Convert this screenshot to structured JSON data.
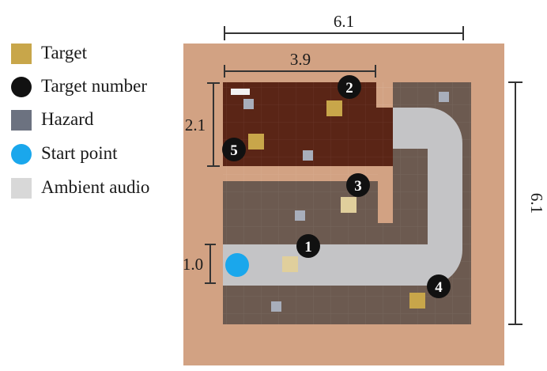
{
  "legend": [
    {
      "label": "Target",
      "icon": "target-square-icon",
      "color": "#c8a64a",
      "shape": "square"
    },
    {
      "label": "Target number",
      "icon": "target-number-dot-icon",
      "color": "#111111",
      "shape": "circle"
    },
    {
      "label": "Hazard",
      "icon": "hazard-square-icon",
      "color": "#6c7280",
      "shape": "square"
    },
    {
      "label": "Start point",
      "icon": "start-point-dot-icon",
      "color": "#1aa7ec",
      "shape": "circle"
    },
    {
      "label": "Ambient audio",
      "icon": "ambient-audio-square-icon",
      "color": "#d8d8d8",
      "shape": "square"
    }
  ],
  "dimensions": {
    "top_width": "6.1",
    "room_width": "3.9",
    "room_height": "2.1",
    "corridor_width": "1.0",
    "right_height": "6.1"
  },
  "target_numbers": [
    "1",
    "2",
    "3",
    "4",
    "5"
  ],
  "colors": {
    "outer_floor": "#d2a283",
    "arena_floor": "#6c5a50",
    "room_floor": "#5a2516",
    "ambient_path": "#c4c4c6",
    "target": "#c8a64a",
    "target_light": "#e0cf9c",
    "hazard": "#a8aebb",
    "start": "#1aa7ec",
    "marker": "#111111",
    "dimension_line": "#333333"
  }
}
